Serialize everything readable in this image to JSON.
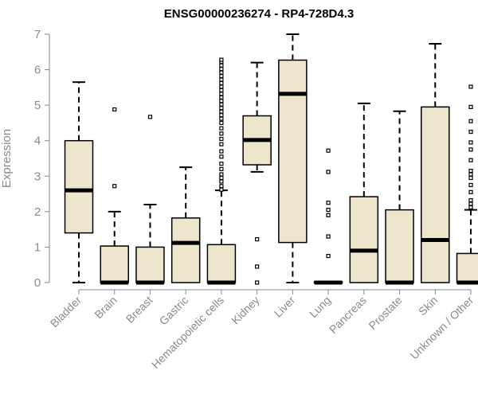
{
  "colors": {
    "box_fill": "#ede6cc",
    "stroke": "#000000",
    "axis": "#8a8a8a",
    "label": "#8a8a8a",
    "title": "#000000"
  },
  "chart_data": {
    "type": "boxplot",
    "title": "ENSG00000236274 - RP4-728D4.3",
    "xlabel": "",
    "ylabel": "Expression",
    "ylim": [
      0,
      7
    ],
    "yticks": [
      0,
      1,
      2,
      3,
      4,
      5,
      6,
      7
    ],
    "grid": false,
    "legend": "none",
    "categories": [
      "Bladder",
      "Brain",
      "Breast",
      "Gastric",
      "Hematopoietic cells",
      "Kidney",
      "Liver",
      "Lung",
      "Pancreas",
      "Prostate",
      "Skin",
      "Unknown / Other"
    ],
    "boxes": [
      {
        "category": "Bladder",
        "whisker_low": 0.0,
        "q1": 1.4,
        "median": 2.6,
        "q3": 4.0,
        "whisker_high": 5.65,
        "outliers": []
      },
      {
        "category": "Brain",
        "whisker_low": 0.0,
        "q1": 0.0,
        "median": 0.0,
        "q3": 1.03,
        "whisker_high": 2.0,
        "outliers": [
          2.72,
          4.88
        ]
      },
      {
        "category": "Breast",
        "whisker_low": 0.0,
        "q1": 0.0,
        "median": 0.0,
        "q3": 1.0,
        "whisker_high": 2.2,
        "outliers": [
          4.67
        ]
      },
      {
        "category": "Gastric",
        "whisker_low": 0.0,
        "q1": 0.0,
        "median": 1.12,
        "q3": 1.82,
        "whisker_high": 3.25,
        "outliers": []
      },
      {
        "category": "Hematopoietic cells",
        "whisker_low": 0.0,
        "q1": 0.0,
        "median": 0.0,
        "q3": 1.07,
        "whisker_high": 2.6,
        "outliers": [
          2.62,
          2.72,
          2.85,
          2.95,
          3.05,
          3.2,
          3.35,
          3.55,
          3.7,
          3.9,
          4.05,
          4.2,
          4.35,
          4.5,
          4.62,
          4.72,
          4.82,
          4.92,
          5.02,
          5.12,
          5.22,
          5.32,
          5.42,
          5.52,
          5.62,
          5.72,
          5.82,
          5.92,
          6.02,
          6.12,
          6.22,
          6.28
        ]
      },
      {
        "category": "Kidney",
        "whisker_low": 3.12,
        "q1": 3.32,
        "median": 4.02,
        "q3": 4.7,
        "whisker_high": 6.2,
        "outliers": [
          0.0,
          0.45,
          1.22
        ]
      },
      {
        "category": "Liver",
        "whisker_low": 0.0,
        "q1": 1.13,
        "median": 5.32,
        "q3": 6.27,
        "whisker_high": 7.0,
        "outliers": []
      },
      {
        "category": "Lung",
        "whisker_low": 0.0,
        "q1": 0.0,
        "median": 0.0,
        "q3": 0.02,
        "whisker_high": 0.02,
        "outliers": [
          0.75,
          1.3,
          1.9,
          2.05,
          2.25,
          3.12,
          3.72
        ]
      },
      {
        "category": "Pancreas",
        "whisker_low": 0.0,
        "q1": 0.0,
        "median": 0.9,
        "q3": 2.42,
        "whisker_high": 5.05,
        "outliers": []
      },
      {
        "category": "Prostate",
        "whisker_low": 0.0,
        "q1": 0.0,
        "median": 0.0,
        "q3": 2.05,
        "whisker_high": 4.83,
        "outliers": []
      },
      {
        "category": "Skin",
        "whisker_low": 0.0,
        "q1": 0.0,
        "median": 1.2,
        "q3": 4.95,
        "whisker_high": 6.73,
        "outliers": []
      },
      {
        "category": "Unknown / Other",
        "whisker_low": 0.0,
        "q1": 0.0,
        "median": 0.0,
        "q3": 0.82,
        "whisker_high": 2.05,
        "outliers": [
          2.12,
          2.22,
          2.32,
          2.55,
          2.75,
          2.95,
          3.05,
          3.15,
          3.45,
          3.75,
          3.95,
          4.25,
          4.55,
          4.95,
          5.52
        ]
      }
    ]
  }
}
